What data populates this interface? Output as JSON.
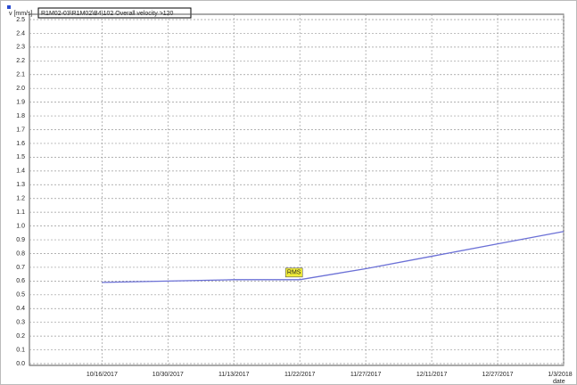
{
  "chart_data": {
    "type": "line",
    "title": "R1M02-03\\R1M02\\B4\\102 Overall velocity >120",
    "y_label": "v [mm/s]",
    "x_label": "date",
    "categories": [
      "10/16/2017",
      "10/30/2017",
      "11/13/2017",
      "11/22/2017",
      "11/27/2017",
      "12/11/2017",
      "12/27/2017",
      "1/3/2018"
    ],
    "series": [
      {
        "name": "RMS",
        "color": "#6b70d6",
        "values": [
          0.59,
          0.6,
          0.61,
          0.61,
          0.69,
          0.78,
          0.87,
          0.96
        ]
      }
    ],
    "ylim": [
      0,
      2.5
    ],
    "yticks": [
      {
        "value": 0,
        "label": "0.0"
      },
      0.1,
      0.2,
      0.3,
      0.4,
      0.5,
      0.6,
      0.7,
      0.8,
      0.9,
      {
        "value": 1,
        "label": "1.0"
      },
      1.1,
      1.2,
      1.3,
      1.4,
      1.5,
      1.6,
      1.7,
      1.8,
      1.9,
      {
        "value": 2,
        "label": "2.0"
      },
      2.1,
      2.2,
      2.3,
      2.4,
      2.5
    ],
    "grid": true
  }
}
